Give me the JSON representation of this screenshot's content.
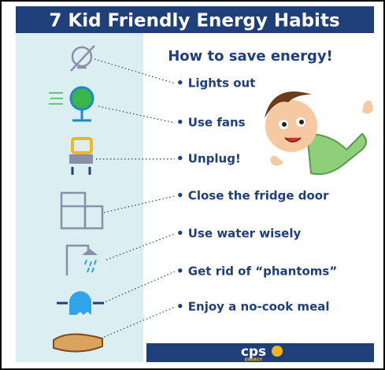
{
  "header": {
    "title": "7 Kid Friendly Energy Habits",
    "subtitle": "How to save energy!"
  },
  "habits": [
    "• Lights out",
    "• Use fans",
    "• Unplug!",
    "• Close the fridge door",
    "• Use water wisely",
    "• Get rid of “phantoms”",
    "• Enjoy a no-cook meal"
  ],
  "footer": {
    "logo": "cps",
    "logo_sub": "ENERGY"
  }
}
